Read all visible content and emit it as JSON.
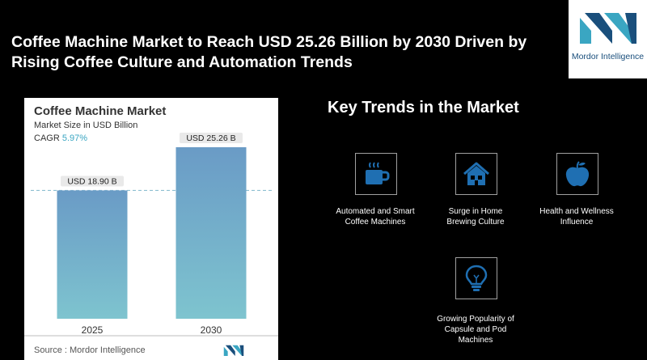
{
  "headline": "Coffee Machine Market to Reach USD 25.26 Billion by 2030 Driven by Rising Coffee Culture and Automation Trends",
  "logo": {
    "text": "Mordor Intelligence"
  },
  "chart_card": {
    "title": "Coffee Machine Market",
    "subtitle": "Market Size in USD Billion",
    "cagr_label": "CAGR",
    "cagr_value": "5.97%",
    "source": "Source :  Mordor Intelligence"
  },
  "chart_data": {
    "type": "bar",
    "title": "Coffee Machine Market",
    "subtitle": "Market Size in USD Billion",
    "categories": [
      "2025",
      "2030"
    ],
    "values": [
      18.9,
      25.26
    ],
    "value_labels": [
      "USD 18.90 B",
      "USD 25.26 B"
    ],
    "ylim": [
      0,
      28
    ],
    "grid": false,
    "reference_line_at": 18.9,
    "colors": {
      "bar_top": "#6a9bc6",
      "bar_bottom": "#7ec4cf"
    }
  },
  "trends": {
    "title": "Key Trends in the Market",
    "items": [
      {
        "label_lines": [
          "Automated and Smart",
          "Coffee Machines"
        ],
        "icon": "coffee-cup-icon"
      },
      {
        "label_lines": [
          "Surge in Home",
          "Brewing Culture"
        ],
        "icon": "house-icon"
      },
      {
        "label_lines": [
          "Health and Wellness",
          "Influence"
        ],
        "icon": "apple-icon"
      },
      {
        "label_lines": [
          "Growing Popularity of",
          "Capsule and Pod",
          "Machines"
        ],
        "icon": "lightbulb-icon"
      }
    ]
  },
  "colors": {
    "icon_blue": "#1f6fb2",
    "brand_teal": "#3aa6c2",
    "brand_navy": "#1a4f7c"
  }
}
